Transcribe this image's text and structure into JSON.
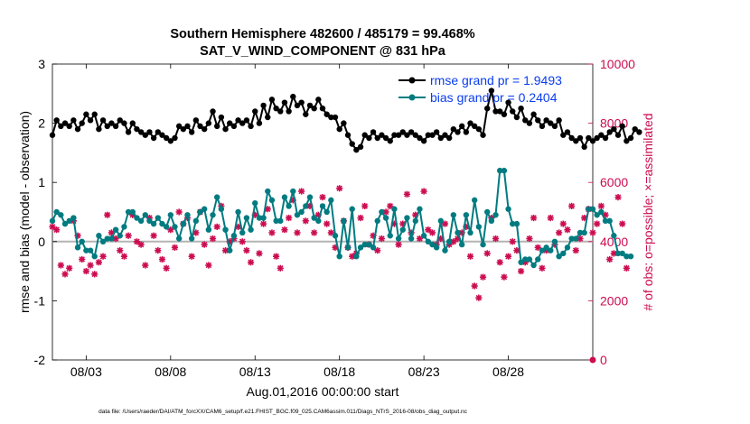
{
  "chart_data": {
    "type": "line",
    "title": "Southern Hemisphere 482600 / 485179 = 99.468%",
    "subtitle": "SAT_V_WIND_COMPONENT @ 831 hPa",
    "xlabel": "Aug.01,2016 00:00:00 start",
    "ylabel": "rmse and bias (model - observation)",
    "ylabel_right": "# of obs: o=possible; ×=assimilated",
    "ylim": [
      -2,
      3
    ],
    "ylim_right": [
      0,
      10000
    ],
    "yticks": [
      "3",
      "2",
      "1",
      "0",
      "-1",
      "-2"
    ],
    "yticks_right": [
      "10000",
      "8000",
      "6000",
      "4000",
      "2000",
      "0"
    ],
    "xlim": [
      1,
      33
    ],
    "x_ticks": [
      {
        "x": 3,
        "label": "08/03"
      },
      {
        "x": 8,
        "label": "08/08"
      },
      {
        "x": 13,
        "label": "08/13"
      },
      {
        "x": 18,
        "label": "08/18"
      },
      {
        "x": 23,
        "label": "08/23"
      },
      {
        "x": 28,
        "label": "08/28"
      }
    ],
    "x_start": 1,
    "x_step": 0.25,
    "legend_position": "top-right",
    "colors": {
      "rmse": "#000000",
      "bias": "#007b80",
      "obs": "#cc0c50",
      "zero_line": "#b4b4b4"
    },
    "series": [
      {
        "name": "rmse grand pr = 1.9493",
        "values": [
          1.8,
          2.05,
          1.95,
          2.0,
          1.95,
          2.05,
          1.9,
          2.0,
          2.15,
          2.05,
          2.15,
          1.9,
          2.05,
          1.95,
          2.0,
          1.95,
          2.05,
          2.0,
          1.85,
          2.0,
          1.9,
          1.85,
          1.8,
          1.85,
          1.75,
          1.85,
          1.8,
          1.75,
          1.7,
          1.75,
          1.95,
          1.9,
          1.95,
          1.85,
          2.05,
          1.95,
          1.9,
          2.0,
          2.2,
          1.95,
          2.1,
          1.9,
          2.0,
          1.95,
          2.05,
          2.0,
          2.05,
          1.95,
          2.2,
          2.0,
          2.3,
          2.1,
          2.4,
          2.25,
          2.2,
          2.35,
          2.2,
          2.45,
          2.3,
          2.35,
          2.15,
          2.3,
          2.25,
          2.4,
          2.25,
          2.15,
          2.1,
          2.1,
          1.9,
          2.0,
          1.8,
          1.65,
          1.55,
          1.6,
          1.8,
          1.75,
          1.85,
          1.75,
          1.8,
          1.75,
          1.7,
          1.8,
          1.8,
          1.85,
          1.8,
          1.85,
          1.8,
          1.75,
          1.7,
          1.8,
          1.8,
          1.85,
          1.75,
          1.8,
          1.75,
          1.9,
          1.85,
          1.95,
          1.85,
          2.0,
          1.95,
          1.9,
          1.8,
          2.25,
          2.55,
          2.2,
          2.2,
          2.15,
          2.35,
          2.2,
          2.1,
          2.25,
          2.05,
          2.0,
          2.15,
          2.05,
          1.95,
          2.05,
          2.0,
          1.95,
          2.05,
          1.8,
          1.85,
          1.75,
          1.7,
          1.75,
          1.6,
          1.75,
          1.7,
          1.75,
          1.8,
          1.75,
          1.85,
          1.9,
          1.8,
          1.95,
          1.7,
          1.75,
          1.9,
          1.85
        ],
        "color": "#000000"
      },
      {
        "name": "bias grand pr = 0.2404",
        "values": [
          0.35,
          0.5,
          0.45,
          0.3,
          0.35,
          0.4,
          -0.1,
          0.0,
          -0.15,
          -0.15,
          -0.25,
          0.1,
          0.0,
          0.05,
          0.05,
          0.2,
          0.1,
          0.25,
          0.5,
          0.5,
          0.4,
          0.35,
          0.45,
          0.35,
          0.3,
          0.4,
          0.3,
          0.25,
          0.45,
          0.25,
          0.05,
          0.3,
          0.45,
          0.05,
          0.35,
          0.5,
          0.55,
          0.2,
          0.45,
          0.75,
          0.55,
          0.2,
          -0.15,
          0.1,
          0.5,
          0.15,
          0.4,
          0.2,
          0.65,
          0.4,
          0.4,
          0.85,
          0.7,
          0.35,
          0.35,
          0.75,
          0.6,
          0.85,
          0.45,
          0.5,
          0.6,
          0.75,
          0.4,
          0.35,
          0.6,
          0.5,
          0.7,
          0.1,
          -0.25,
          0.35,
          -0.1,
          0.55,
          -0.25,
          -0.1,
          -0.05,
          -0.05,
          -0.1,
          0.35,
          0.5,
          0.4,
          0.1,
          0.55,
          0.05,
          0.2,
          0.4,
          0.05,
          0.35,
          0.55,
          0.1,
          0.0,
          -0.05,
          -0.1,
          0.35,
          -0.15,
          0.0,
          0.45,
          0.15,
          -0.05,
          0.45,
          0.15,
          0.7,
          0.25,
          -0.05,
          0.5,
          0.35,
          0.45,
          1.2,
          1.2,
          0.55,
          0.3,
          0.3,
          -0.35,
          -0.3,
          -0.3,
          -0.4,
          -0.3,
          -0.15,
          -0.1,
          -0.15,
          0.0,
          -0.25,
          -0.2,
          -0.1,
          0.05,
          0.05,
          0.15,
          0.15,
          0.55,
          0.55,
          0.45,
          0.5,
          0.35,
          0.35,
          0.1,
          -0.2,
          -0.2,
          -0.25,
          -0.25
        ],
        "color": "#007b80"
      },
      {
        "name": "# of obs assimilated",
        "values": [
          4500,
          4400,
          3200,
          2900,
          3100,
          4700,
          4200,
          3400,
          3000,
          3200,
          2900,
          3300,
          3500,
          4900,
          4300,
          4100,
          3700,
          3500,
          4200,
          4900,
          4000,
          3900,
          3200,
          4800,
          4200,
          3700,
          3400,
          3100,
          4400,
          3800,
          5000,
          4600,
          4800,
          3500,
          4300,
          5000,
          3900,
          3200,
          4100,
          4500,
          5200,
          3700,
          4000,
          4100,
          4500,
          4000,
          3700,
          3300,
          4900,
          3600,
          4600,
          5100,
          4300,
          3500,
          3100,
          4400,
          4800,
          5400,
          4300,
          5700,
          4700,
          5200,
          4300,
          4900,
          5500,
          4600,
          4300,
          3800,
          5800,
          4700,
          3800,
          3500,
          3600,
          4800,
          5200,
          3900,
          4200,
          3700,
          4100,
          5000,
          5200,
          4600,
          3900,
          4600,
          5600,
          4300,
          4900,
          4100,
          5700,
          4400,
          4300,
          3900,
          4100,
          4600,
          3900,
          4000,
          4100,
          4300,
          4500,
          3500,
          2500,
          2100,
          2800,
          3600,
          4800,
          4100,
          3300,
          2800,
          3500,
          4000,
          3700,
          3000,
          3300,
          4100,
          4800,
          3800,
          3100,
          3700,
          4800,
          3900,
          4300,
          4600,
          4400,
          5200,
          3700,
          4100,
          4800,
          5100,
          4300,
          4600,
          5200,
          4900,
          3400,
          3600,
          5500,
          4600,
          3100
        ],
        "color": "#cc0c50"
      }
    ],
    "obs_possible": [
      {
        "x": 33,
        "value": 0
      }
    ],
    "footnote": "data file: /Users/raeder/DAI/ATM_forcXX/CAM6_setup/f.e21.FHIST_BGC.f09_025.CAM6assim.011/Diags_NTrS_2016-08/obs_diag_output.nc"
  }
}
